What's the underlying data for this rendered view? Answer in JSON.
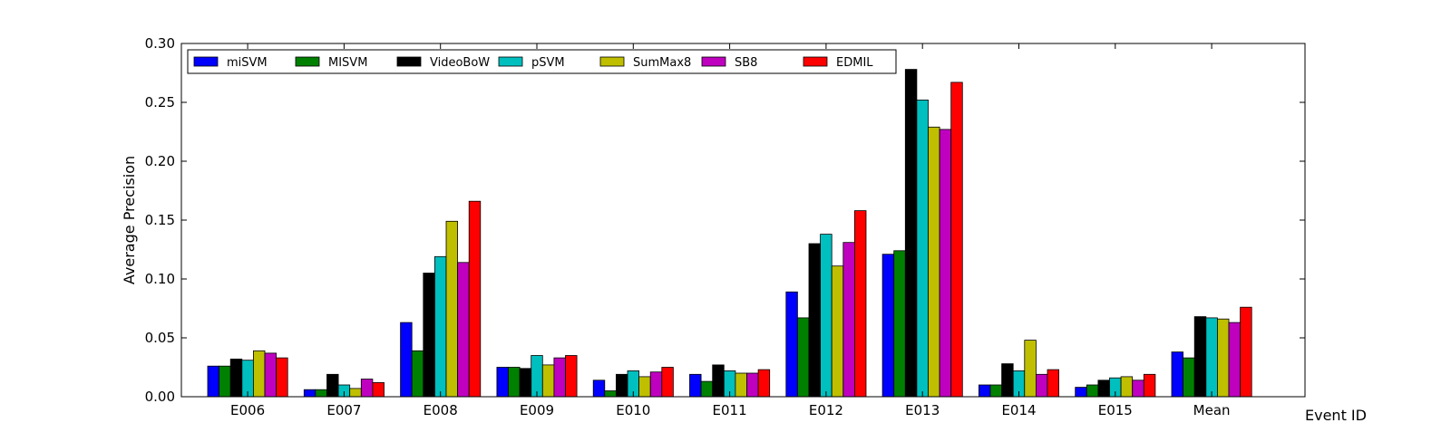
{
  "chart_data": {
    "type": "bar",
    "title": "",
    "xlabel": "Event ID",
    "ylabel": "Average Precision",
    "ylim": [
      0,
      0.3
    ],
    "yticks": [
      "0.00",
      "0.05",
      "0.10",
      "0.15",
      "0.20",
      "0.25",
      "0.30"
    ],
    "grid": false,
    "legend_position": "top-left",
    "categories": [
      "E006",
      "E007",
      "E008",
      "E009",
      "E010",
      "E011",
      "E012",
      "E013",
      "E014",
      "E015",
      "Mean"
    ],
    "series": [
      {
        "name": "miSVM",
        "color": "#0000ff",
        "values": [
          0.026,
          0.006,
          0.063,
          0.025,
          0.014,
          0.019,
          0.089,
          0.121,
          0.01,
          0.008,
          0.038
        ]
      },
      {
        "name": "MISVM",
        "color": "#008000",
        "values": [
          0.026,
          0.006,
          0.039,
          0.025,
          0.005,
          0.013,
          0.067,
          0.124,
          0.01,
          0.01,
          0.033
        ]
      },
      {
        "name": "VideoBoW",
        "color": "#000000",
        "values": [
          0.032,
          0.019,
          0.105,
          0.024,
          0.019,
          0.027,
          0.13,
          0.278,
          0.028,
          0.014,
          0.068
        ]
      },
      {
        "name": "pSVM",
        "color": "#00bfbf",
        "values": [
          0.031,
          0.01,
          0.119,
          0.035,
          0.022,
          0.022,
          0.138,
          0.252,
          0.022,
          0.016,
          0.067
        ]
      },
      {
        "name": "SumMax8",
        "color": "#bfbf00",
        "values": [
          0.039,
          0.007,
          0.149,
          0.027,
          0.017,
          0.02,
          0.111,
          0.229,
          0.048,
          0.017,
          0.066
        ]
      },
      {
        "name": "SB8",
        "color": "#bf00bf",
        "values": [
          0.037,
          0.015,
          0.114,
          0.033,
          0.021,
          0.02,
          0.131,
          0.227,
          0.019,
          0.014,
          0.063
        ]
      },
      {
        "name": "EDMIL",
        "color": "#ff0000",
        "values": [
          0.033,
          0.012,
          0.166,
          0.035,
          0.025,
          0.023,
          0.158,
          0.267,
          0.023,
          0.019,
          0.076
        ]
      }
    ]
  }
}
